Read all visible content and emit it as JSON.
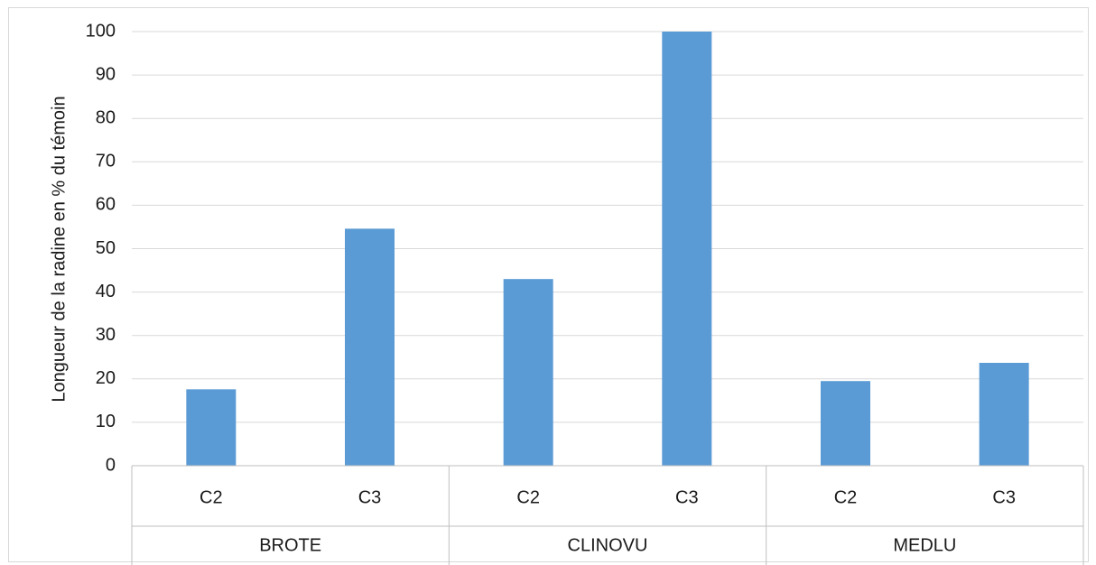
{
  "chart_data": {
    "type": "bar",
    "groups": [
      {
        "label": "BROTE",
        "categories": [
          "C2",
          "C3"
        ],
        "values": [
          17.6,
          54.6
        ]
      },
      {
        "label": "CLINOVU",
        "categories": [
          "C2",
          "C3"
        ],
        "values": [
          43.0,
          100.0
        ]
      },
      {
        "label": "MEDLU",
        "categories": [
          "C2",
          "C3"
        ],
        "values": [
          19.5,
          23.7
        ]
      }
    ],
    "title": "",
    "xlabel": "",
    "ylabel": "Longueur de la radine en % du témoin",
    "ylim": [
      0,
      100
    ],
    "yticks": [
      0,
      10,
      20,
      30,
      40,
      50,
      60,
      70,
      80,
      90,
      100
    ],
    "grid": true,
    "legend": "none",
    "colors": {
      "bar": "#5b9bd5",
      "grid": "#d9d9d9",
      "axis": "#bfbfbf"
    }
  }
}
